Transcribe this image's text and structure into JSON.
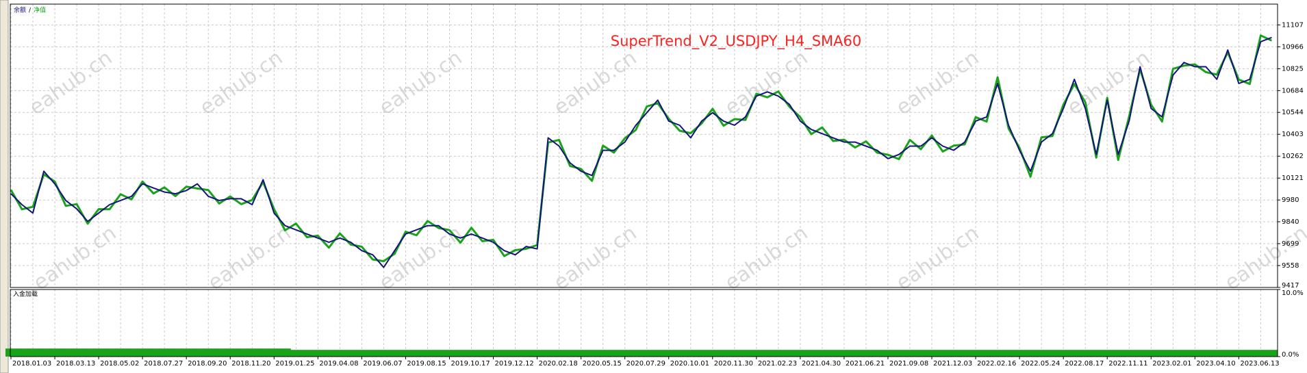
{
  "chart_data": [
    {
      "type": "line",
      "title": "SuperTrend_V2_USDJPY_H4_SMA60",
      "watermark": "eahub.cn",
      "legend_separator": "/",
      "categories": [
        "2018.01.03",
        null,
        null,
        null,
        "2018.03.13",
        null,
        null,
        null,
        "2018.05.02",
        null,
        null,
        null,
        "2018.07.27",
        null,
        null,
        null,
        "2018.09.20",
        null,
        null,
        null,
        "2018.11.20",
        null,
        null,
        null,
        "2019.01.25",
        null,
        null,
        null,
        "2019.04.08",
        null,
        null,
        null,
        "2019.06.07",
        null,
        null,
        null,
        "2019.08.15",
        null,
        null,
        null,
        "2019.10.17",
        null,
        null,
        null,
        "2019.12.12",
        null,
        null,
        null,
        "2020.02.18",
        null,
        null,
        null,
        "2020.05.15",
        null,
        null,
        null,
        "2020.07.29",
        null,
        null,
        null,
        "2020.10.01",
        null,
        null,
        null,
        "2020.11.30",
        null,
        null,
        null,
        "2021.02.23",
        null,
        null,
        null,
        "2021.04.30",
        null,
        null,
        null,
        "2021.06.21",
        null,
        null,
        null,
        "2021.09.08",
        null,
        null,
        null,
        "2021.12.03",
        null,
        null,
        null,
        "2022.02.16",
        null,
        null,
        null,
        "2022.05.24",
        null,
        null,
        null,
        "2022.08.17",
        null,
        null,
        null,
        "2022.11.11",
        null,
        null,
        null,
        "2023.02.01",
        null,
        null,
        null,
        "2023.04.10",
        null,
        null,
        null,
        "2023.06.13",
        null,
        null,
        null
      ],
      "series": [
        {
          "name": "余额",
          "color": "#14147a",
          "values": [
            10020,
            9950,
            9896,
            10165,
            10084,
            9977,
            9923,
            9842,
            9896,
            9950,
            9977,
            10004,
            10084,
            10057,
            10031,
            10020,
            10041,
            10084,
            10004,
            9977,
            9988,
            9988,
            9950,
            10111,
            9896,
            9815,
            9788,
            9761,
            9735,
            9708,
            9735,
            9708,
            9654,
            9627,
            9546,
            9654,
            9761,
            9788,
            9815,
            9815,
            9761,
            9735,
            9761,
            9735,
            9708,
            9654,
            9627,
            9681,
            9665,
            10380,
            10327,
            10219,
            10165,
            10138,
            10300,
            10300,
            10353,
            10461,
            10542,
            10623,
            10488,
            10461,
            10380,
            10488,
            10542,
            10488,
            10461,
            10515,
            10649,
            10676,
            10649,
            10596,
            10488,
            10434,
            10407,
            10380,
            10353,
            10353,
            10327,
            10300,
            10246,
            10273,
            10327,
            10327,
            10380,
            10327,
            10300,
            10353,
            10488,
            10515,
            10730,
            10461,
            10300,
            10165,
            10353,
            10407,
            10569,
            10757,
            10569,
            10273,
            10623,
            10273,
            10488,
            10838,
            10569,
            10515,
            10784,
            10865,
            10838,
            10838,
            10757,
            10946,
            10730,
            10757,
            10999,
            11026
          ]
        },
        {
          "name": "净值",
          "color": "#1aa31a",
          "values": [
            10045,
            9920,
            9936,
            10145,
            10099,
            9942,
            9953,
            9827,
            9921,
            9920,
            10017,
            9984,
            10099,
            10022,
            10061,
            10005,
            10066,
            10054,
            10044,
            9957,
            10003,
            9953,
            9980,
            10096,
            9921,
            9785,
            9828,
            9741,
            9750,
            9673,
            9765,
            9693,
            9679,
            9597,
            9586,
            9634,
            9776,
            9753,
            9845,
            9800,
            9786,
            9705,
            9801,
            9715,
            9723,
            9619,
            9657,
            9666,
            9690,
            10350,
            10367,
            10199,
            10180,
            10103,
            10330,
            10285,
            10378,
            10431,
            10582,
            10603,
            10503,
            10426,
            10410,
            10473,
            10567,
            10458,
            10501,
            10495,
            10664,
            10641,
            10679,
            10581,
            10513,
            10404,
            10447,
            10360,
            10368,
            10318,
            10357,
            10285,
            10271,
            10243,
            10367,
            10307,
            10395,
            10292,
            10330,
            10338,
            10513,
            10485,
            10770,
            10441,
            10315,
            10130,
            10383,
            10392,
            10594,
            10727,
            10609,
            10253,
            10638,
            10238,
            10518,
            10823,
            10594,
            10485,
            10824,
            10845,
            10853,
            10803,
            10787,
            10931,
            10755,
            10727,
            11039,
            11006
          ]
        }
      ],
      "ylim": [
        9417,
        11241
      ],
      "yticks": [
        11107,
        10966,
        10825,
        10684,
        10544,
        10403,
        10262,
        10121,
        9980,
        9840,
        9699,
        9558,
        9417
      ],
      "grid": true
    },
    {
      "type": "bar",
      "title": "入金加载",
      "color": "#1aa31a",
      "values": [
        1.2,
        1.2,
        1.2,
        1.2,
        1.2,
        1.2,
        1.2,
        1.2,
        1.2,
        1.2,
        1.2,
        1.2,
        1.2,
        1.2,
        1.2,
        1.2,
        1.2,
        1.2,
        1.2,
        1.2,
        1.2,
        1.2,
        1.2,
        1.2,
        1.2,
        1.2,
        1,
        1,
        1,
        1,
        1,
        1,
        1,
        1,
        1,
        1,
        1,
        1,
        1,
        1,
        1,
        1,
        1,
        1,
        1,
        1,
        1,
        1,
        1,
        1,
        1,
        1,
        1,
        1,
        1,
        1,
        1,
        1,
        1,
        1,
        1,
        1,
        1,
        1,
        1,
        1,
        1,
        1,
        1,
        1,
        1,
        1,
        1,
        1,
        1,
        1,
        1,
        1,
        1,
        1,
        1,
        1,
        1,
        1,
        1,
        1,
        1,
        1,
        1,
        1,
        1,
        1,
        1,
        1,
        1,
        1,
        1,
        1,
        1,
        1,
        1,
        1,
        1,
        1,
        1,
        1,
        1,
        1,
        1,
        1,
        1,
        1,
        1,
        1,
        1,
        1
      ],
      "ylim": [
        0,
        10
      ],
      "yticks": [
        {
          "value": 10,
          "label": "10.0%"
        },
        {
          "value": 0,
          "label": "0.0%"
        }
      ],
      "grid": true
    }
  ]
}
